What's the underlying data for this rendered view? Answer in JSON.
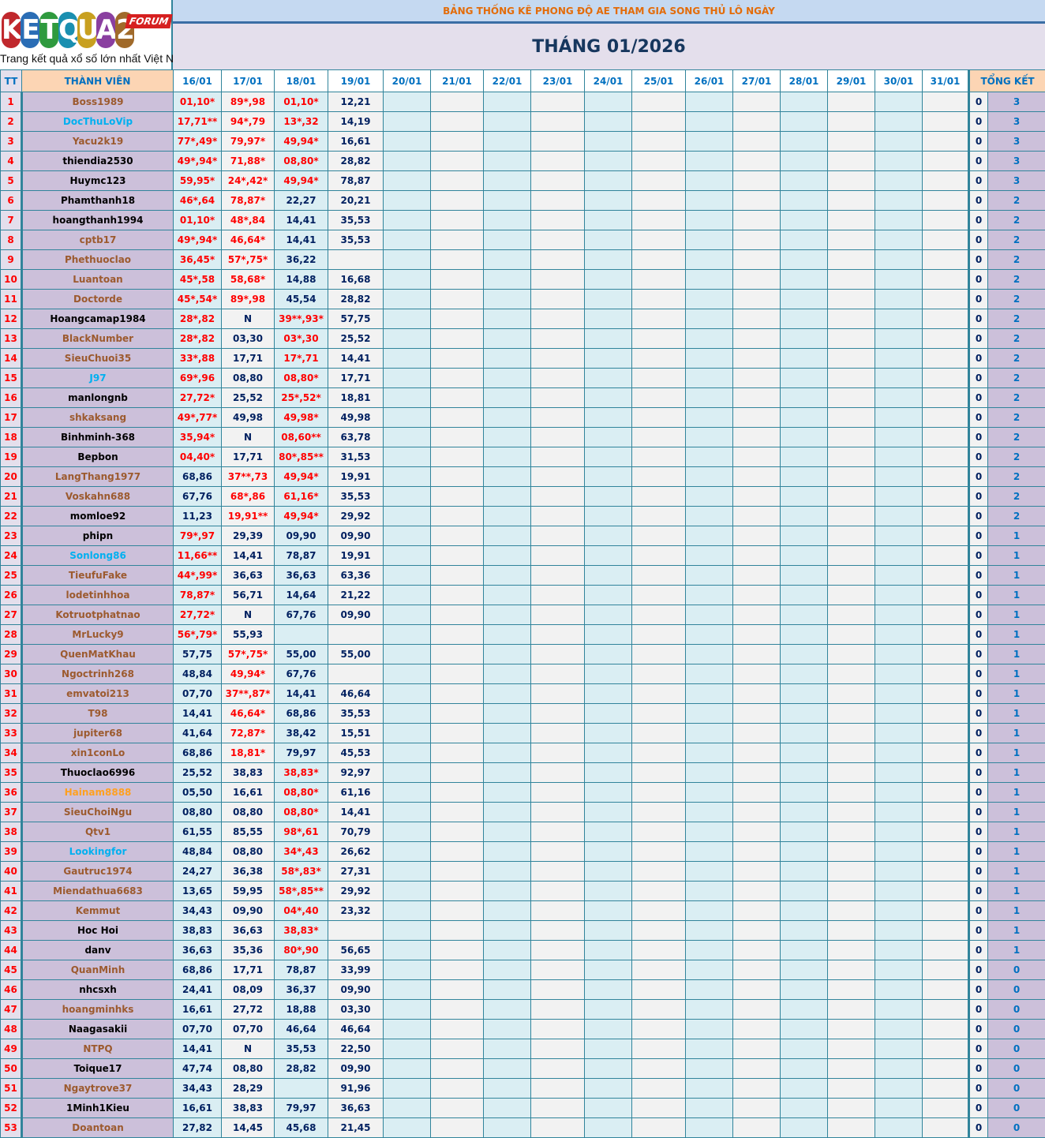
{
  "logo": {
    "text": "KETQUA2",
    "badge": "FORUM",
    "tagline": "Trang kết quả xổ số lớn nhất Việt Nam"
  },
  "title": "BẢNG THỐNG KÊ PHONG ĐỘ AE THAM GIA SONG THỦ LÔ NGÀY",
  "month": "THÁNG 01/2026",
  "headers": {
    "tt": "TT",
    "member": "THÀNH VIÊN",
    "total": "TỔNG KẾT",
    "dates": [
      "16/01",
      "17/01",
      "18/01",
      "19/01",
      "20/01",
      "21/01",
      "22/01",
      "23/01",
      "24/01",
      "25/01",
      "26/01",
      "27/01",
      "28/01",
      "29/01",
      "30/01",
      "31/01"
    ]
  },
  "colors": {
    "brown": "#9C5A2E",
    "black": "#000000",
    "cyan": "#00B0F0",
    "orange": "#FFA020",
    "hit": "#FF0000",
    "miss": "#002060",
    "grid": "#31849B"
  },
  "rows": [
    {
      "tt": "1",
      "name": "Boss1989",
      "color": "brown",
      "v": [
        "01,10*",
        "89*,98",
        "01,10*",
        "12,21"
      ],
      "t1": "0",
      "t2": "3"
    },
    {
      "tt": "2",
      "name": "DocThuLoVip",
      "color": "cyan",
      "v": [
        "17,71**",
        "94*,79",
        "13*,32",
        "14,19"
      ],
      "t1": "0",
      "t2": "3"
    },
    {
      "tt": "3",
      "name": "Yacu2k19",
      "color": "brown",
      "v": [
        "77*,49*",
        "79,97*",
        "49,94*",
        "16,61"
      ],
      "t1": "0",
      "t2": "3"
    },
    {
      "tt": "4",
      "name": "thiendia2530",
      "color": "black",
      "v": [
        "49*,94*",
        "71,88*",
        "08,80*",
        "28,82"
      ],
      "t1": "0",
      "t2": "3"
    },
    {
      "tt": "5",
      "name": "Huymc123",
      "color": "black",
      "v": [
        "59,95*",
        "24*,42*",
        "49,94*",
        "78,87"
      ],
      "t1": "0",
      "t2": "3"
    },
    {
      "tt": "6",
      "name": "Phamthanh18",
      "color": "black",
      "v": [
        "46*,64",
        "78,87*",
        "22,27",
        "20,21"
      ],
      "t1": "0",
      "t2": "2"
    },
    {
      "tt": "7",
      "name": "hoangthanh1994",
      "color": "black",
      "v": [
        "01,10*",
        "48*,84",
        "14,41",
        "35,53"
      ],
      "t1": "0",
      "t2": "2"
    },
    {
      "tt": "8",
      "name": "cptb17",
      "color": "brown",
      "v": [
        "49*,94*",
        "46,64*",
        "14,41",
        "35,53"
      ],
      "t1": "0",
      "t2": "2"
    },
    {
      "tt": "9",
      "name": "Phethuoclao",
      "color": "brown",
      "v": [
        "36,45*",
        "57*,75*",
        "36,22",
        ""
      ],
      "t1": "0",
      "t2": "2"
    },
    {
      "tt": "10",
      "name": "Luantoan",
      "color": "brown",
      "v": [
        "45*,58",
        "58,68*",
        "14,88",
        "16,68"
      ],
      "t1": "0",
      "t2": "2"
    },
    {
      "tt": "11",
      "name": "Doctorde",
      "color": "brown",
      "v": [
        "45*,54*",
        "89*,98",
        "45,54",
        "28,82"
      ],
      "t1": "0",
      "t2": "2"
    },
    {
      "tt": "12",
      "name": "Hoangcamap1984",
      "color": "black",
      "v": [
        "28*,82",
        "N",
        "39**,93*",
        "57,75"
      ],
      "t1": "0",
      "t2": "2"
    },
    {
      "tt": "13",
      "name": "BlackNumber",
      "color": "brown",
      "v": [
        "28*,82",
        "03,30",
        "03*,30",
        "25,52"
      ],
      "t1": "0",
      "t2": "2"
    },
    {
      "tt": "14",
      "name": "SieuChuoi35",
      "color": "brown",
      "v": [
        "33*,88",
        "17,71",
        "17*,71",
        "14,41"
      ],
      "t1": "0",
      "t2": "2"
    },
    {
      "tt": "15",
      "name": "J97",
      "color": "cyan",
      "v": [
        "69*,96",
        "08,80",
        "08,80*",
        "17,71"
      ],
      "t1": "0",
      "t2": "2"
    },
    {
      "tt": "16",
      "name": "manlongnb",
      "color": "black",
      "v": [
        "27,72*",
        "25,52",
        "25*,52*",
        "18,81"
      ],
      "t1": "0",
      "t2": "2"
    },
    {
      "tt": "17",
      "name": "shkaksang",
      "color": "brown",
      "v": [
        "49*,77*",
        "49,98",
        "49,98*",
        "49,98"
      ],
      "t1": "0",
      "t2": "2"
    },
    {
      "tt": "18",
      "name": "Binhminh-368",
      "color": "black",
      "v": [
        "35,94*",
        "N",
        "08,60**",
        "63,78"
      ],
      "t1": "0",
      "t2": "2"
    },
    {
      "tt": "19",
      "name": "Bepbon",
      "color": "black",
      "v": [
        "04,40*",
        "17,71",
        "80*,85**",
        "31,53"
      ],
      "t1": "0",
      "t2": "2"
    },
    {
      "tt": "20",
      "name": "LangThang1977",
      "color": "brown",
      "v": [
        "68,86",
        "37**,73",
        "49,94*",
        "19,91"
      ],
      "t1": "0",
      "t2": "2"
    },
    {
      "tt": "21",
      "name": "Voskahn688",
      "color": "brown",
      "v": [
        "67,76",
        "68*,86",
        "61,16*",
        "35,53"
      ],
      "t1": "0",
      "t2": "2"
    },
    {
      "tt": "22",
      "name": "momloe92",
      "color": "black",
      "v": [
        "11,23",
        "19,91**",
        "49,94*",
        "29,92"
      ],
      "t1": "0",
      "t2": "2"
    },
    {
      "tt": "23",
      "name": "phipn",
      "color": "black",
      "v": [
        "79*,97",
        "29,39",
        "09,90",
        "09,90"
      ],
      "t1": "0",
      "t2": "1"
    },
    {
      "tt": "24",
      "name": "Sonlong86",
      "color": "cyan",
      "v": [
        "11,66**",
        "14,41",
        "78,87",
        "19,91"
      ],
      "t1": "0",
      "t2": "1"
    },
    {
      "tt": "25",
      "name": "TieufuFake",
      "color": "brown",
      "v": [
        "44*,99*",
        "36,63",
        "36,63",
        "63,36"
      ],
      "t1": "0",
      "t2": "1"
    },
    {
      "tt": "26",
      "name": "lodetinhhoa",
      "color": "brown",
      "v": [
        "78,87*",
        "56,71",
        "14,64",
        "21,22"
      ],
      "t1": "0",
      "t2": "1"
    },
    {
      "tt": "27",
      "name": "Kotruotphatnao",
      "color": "brown",
      "v": [
        "27,72*",
        "N",
        "67,76",
        "09,90"
      ],
      "t1": "0",
      "t2": "1"
    },
    {
      "tt": "28",
      "name": "MrLucky9",
      "color": "brown",
      "v": [
        "56*,79*",
        "55,93",
        "",
        ""
      ],
      "t1": "0",
      "t2": "1"
    },
    {
      "tt": "29",
      "name": "QuenMatKhau",
      "color": "brown",
      "v": [
        "57,75",
        "57*,75*",
        "55,00",
        "55,00"
      ],
      "t1": "0",
      "t2": "1"
    },
    {
      "tt": "30",
      "name": "Ngoctrinh268",
      "color": "brown",
      "v": [
        "48,84",
        "49,94*",
        "67,76",
        ""
      ],
      "t1": "0",
      "t2": "1"
    },
    {
      "tt": "31",
      "name": "emvatoi213",
      "color": "brown",
      "v": [
        "07,70",
        "37**,87*",
        "14,41",
        "46,64"
      ],
      "t1": "0",
      "t2": "1"
    },
    {
      "tt": "32",
      "name": "T98",
      "color": "brown",
      "v": [
        "14,41",
        "46,64*",
        "68,86",
        "35,53"
      ],
      "t1": "0",
      "t2": "1"
    },
    {
      "tt": "33",
      "name": "jupiter68",
      "color": "brown",
      "v": [
        "41,64",
        "72,87*",
        "38,42",
        "15,51"
      ],
      "t1": "0",
      "t2": "1"
    },
    {
      "tt": "34",
      "name": "xin1conLo",
      "color": "brown",
      "v": [
        "68,86",
        "18,81*",
        "79,97",
        "45,53"
      ],
      "t1": "0",
      "t2": "1"
    },
    {
      "tt": "35",
      "name": "Thuoclao6996",
      "color": "black",
      "v": [
        "25,52",
        "38,83",
        "38,83*",
        "92,97"
      ],
      "t1": "0",
      "t2": "1"
    },
    {
      "tt": "36",
      "name": "Hainam8888",
      "color": "orange",
      "v": [
        "05,50",
        "16,61",
        "08,80*",
        "61,16"
      ],
      "t1": "0",
      "t2": "1"
    },
    {
      "tt": "37",
      "name": "SieuChoiNgu",
      "color": "brown",
      "v": [
        "08,80",
        "08,80",
        "08,80*",
        "14,41"
      ],
      "t1": "0",
      "t2": "1"
    },
    {
      "tt": "38",
      "name": "Qtv1",
      "color": "brown",
      "v": [
        "61,55",
        "85,55",
        "98*,61",
        "70,79"
      ],
      "t1": "0",
      "t2": "1"
    },
    {
      "tt": "39",
      "name": "Lookingfor",
      "color": "cyan",
      "v": [
        "48,84",
        "08,80",
        "34*,43",
        "26,62"
      ],
      "t1": "0",
      "t2": "1"
    },
    {
      "tt": "40",
      "name": "Gautruc1974",
      "color": "brown",
      "v": [
        "24,27",
        "36,38",
        "58*,83*",
        "27,31"
      ],
      "t1": "0",
      "t2": "1"
    },
    {
      "tt": "41",
      "name": "Miendathua6683",
      "color": "brown",
      "v": [
        "13,65",
        "59,95",
        "58*,85**",
        "29,92"
      ],
      "t1": "0",
      "t2": "1"
    },
    {
      "tt": "42",
      "name": "Kemmut",
      "color": "brown",
      "v": [
        "34,43",
        "09,90",
        "04*,40",
        "23,32"
      ],
      "t1": "0",
      "t2": "1"
    },
    {
      "tt": "43",
      "name": "Hoc Hoi",
      "color": "black",
      "v": [
        "38,83",
        "36,63",
        "38,83*",
        ""
      ],
      "t1": "0",
      "t2": "1"
    },
    {
      "tt": "44",
      "name": "danv",
      "color": "black",
      "v": [
        "36,63",
        "35,36",
        "80*,90",
        "56,65"
      ],
      "t1": "0",
      "t2": "1"
    },
    {
      "tt": "45",
      "name": "QuanMinh",
      "color": "brown",
      "v": [
        "68,86",
        "17,71",
        "78,87",
        "33,99"
      ],
      "t1": "0",
      "t2": "0"
    },
    {
      "tt": "46",
      "name": "nhcsxh",
      "color": "black",
      "v": [
        "24,41",
        "08,09",
        "36,37",
        "09,90"
      ],
      "t1": "0",
      "t2": "0"
    },
    {
      "tt": "47",
      "name": "hoangminhks",
      "color": "brown",
      "v": [
        "16,61",
        "27,72",
        "18,88",
        "03,30"
      ],
      "t1": "0",
      "t2": "0"
    },
    {
      "tt": "48",
      "name": "Naagasakii",
      "color": "black",
      "v": [
        "07,70",
        "07,70",
        "46,64",
        "46,64"
      ],
      "t1": "0",
      "t2": "0"
    },
    {
      "tt": "49",
      "name": "NTPQ",
      "color": "brown",
      "v": [
        "14,41",
        "N",
        "35,53",
        "22,50"
      ],
      "t1": "0",
      "t2": "0"
    },
    {
      "tt": "50",
      "name": "Toique17",
      "color": "black",
      "v": [
        "47,74",
        "08,80",
        "28,82",
        "09,90"
      ],
      "t1": "0",
      "t2": "0"
    },
    {
      "tt": "51",
      "name": "Ngaytrove37",
      "color": "brown",
      "v": [
        "34,43",
        "28,29",
        "",
        "91,96"
      ],
      "t1": "0",
      "t2": "0"
    },
    {
      "tt": "52",
      "name": "1Minh1Kieu",
      "color": "black",
      "v": [
        "16,61",
        "38,83",
        "79,97",
        "36,63"
      ],
      "t1": "0",
      "t2": "0"
    },
    {
      "tt": "53",
      "name": "Doantoan",
      "color": "brown",
      "v": [
        "27,82",
        "14,45",
        "45,68",
        "21,45"
      ],
      "t1": "0",
      "t2": "0"
    }
  ]
}
